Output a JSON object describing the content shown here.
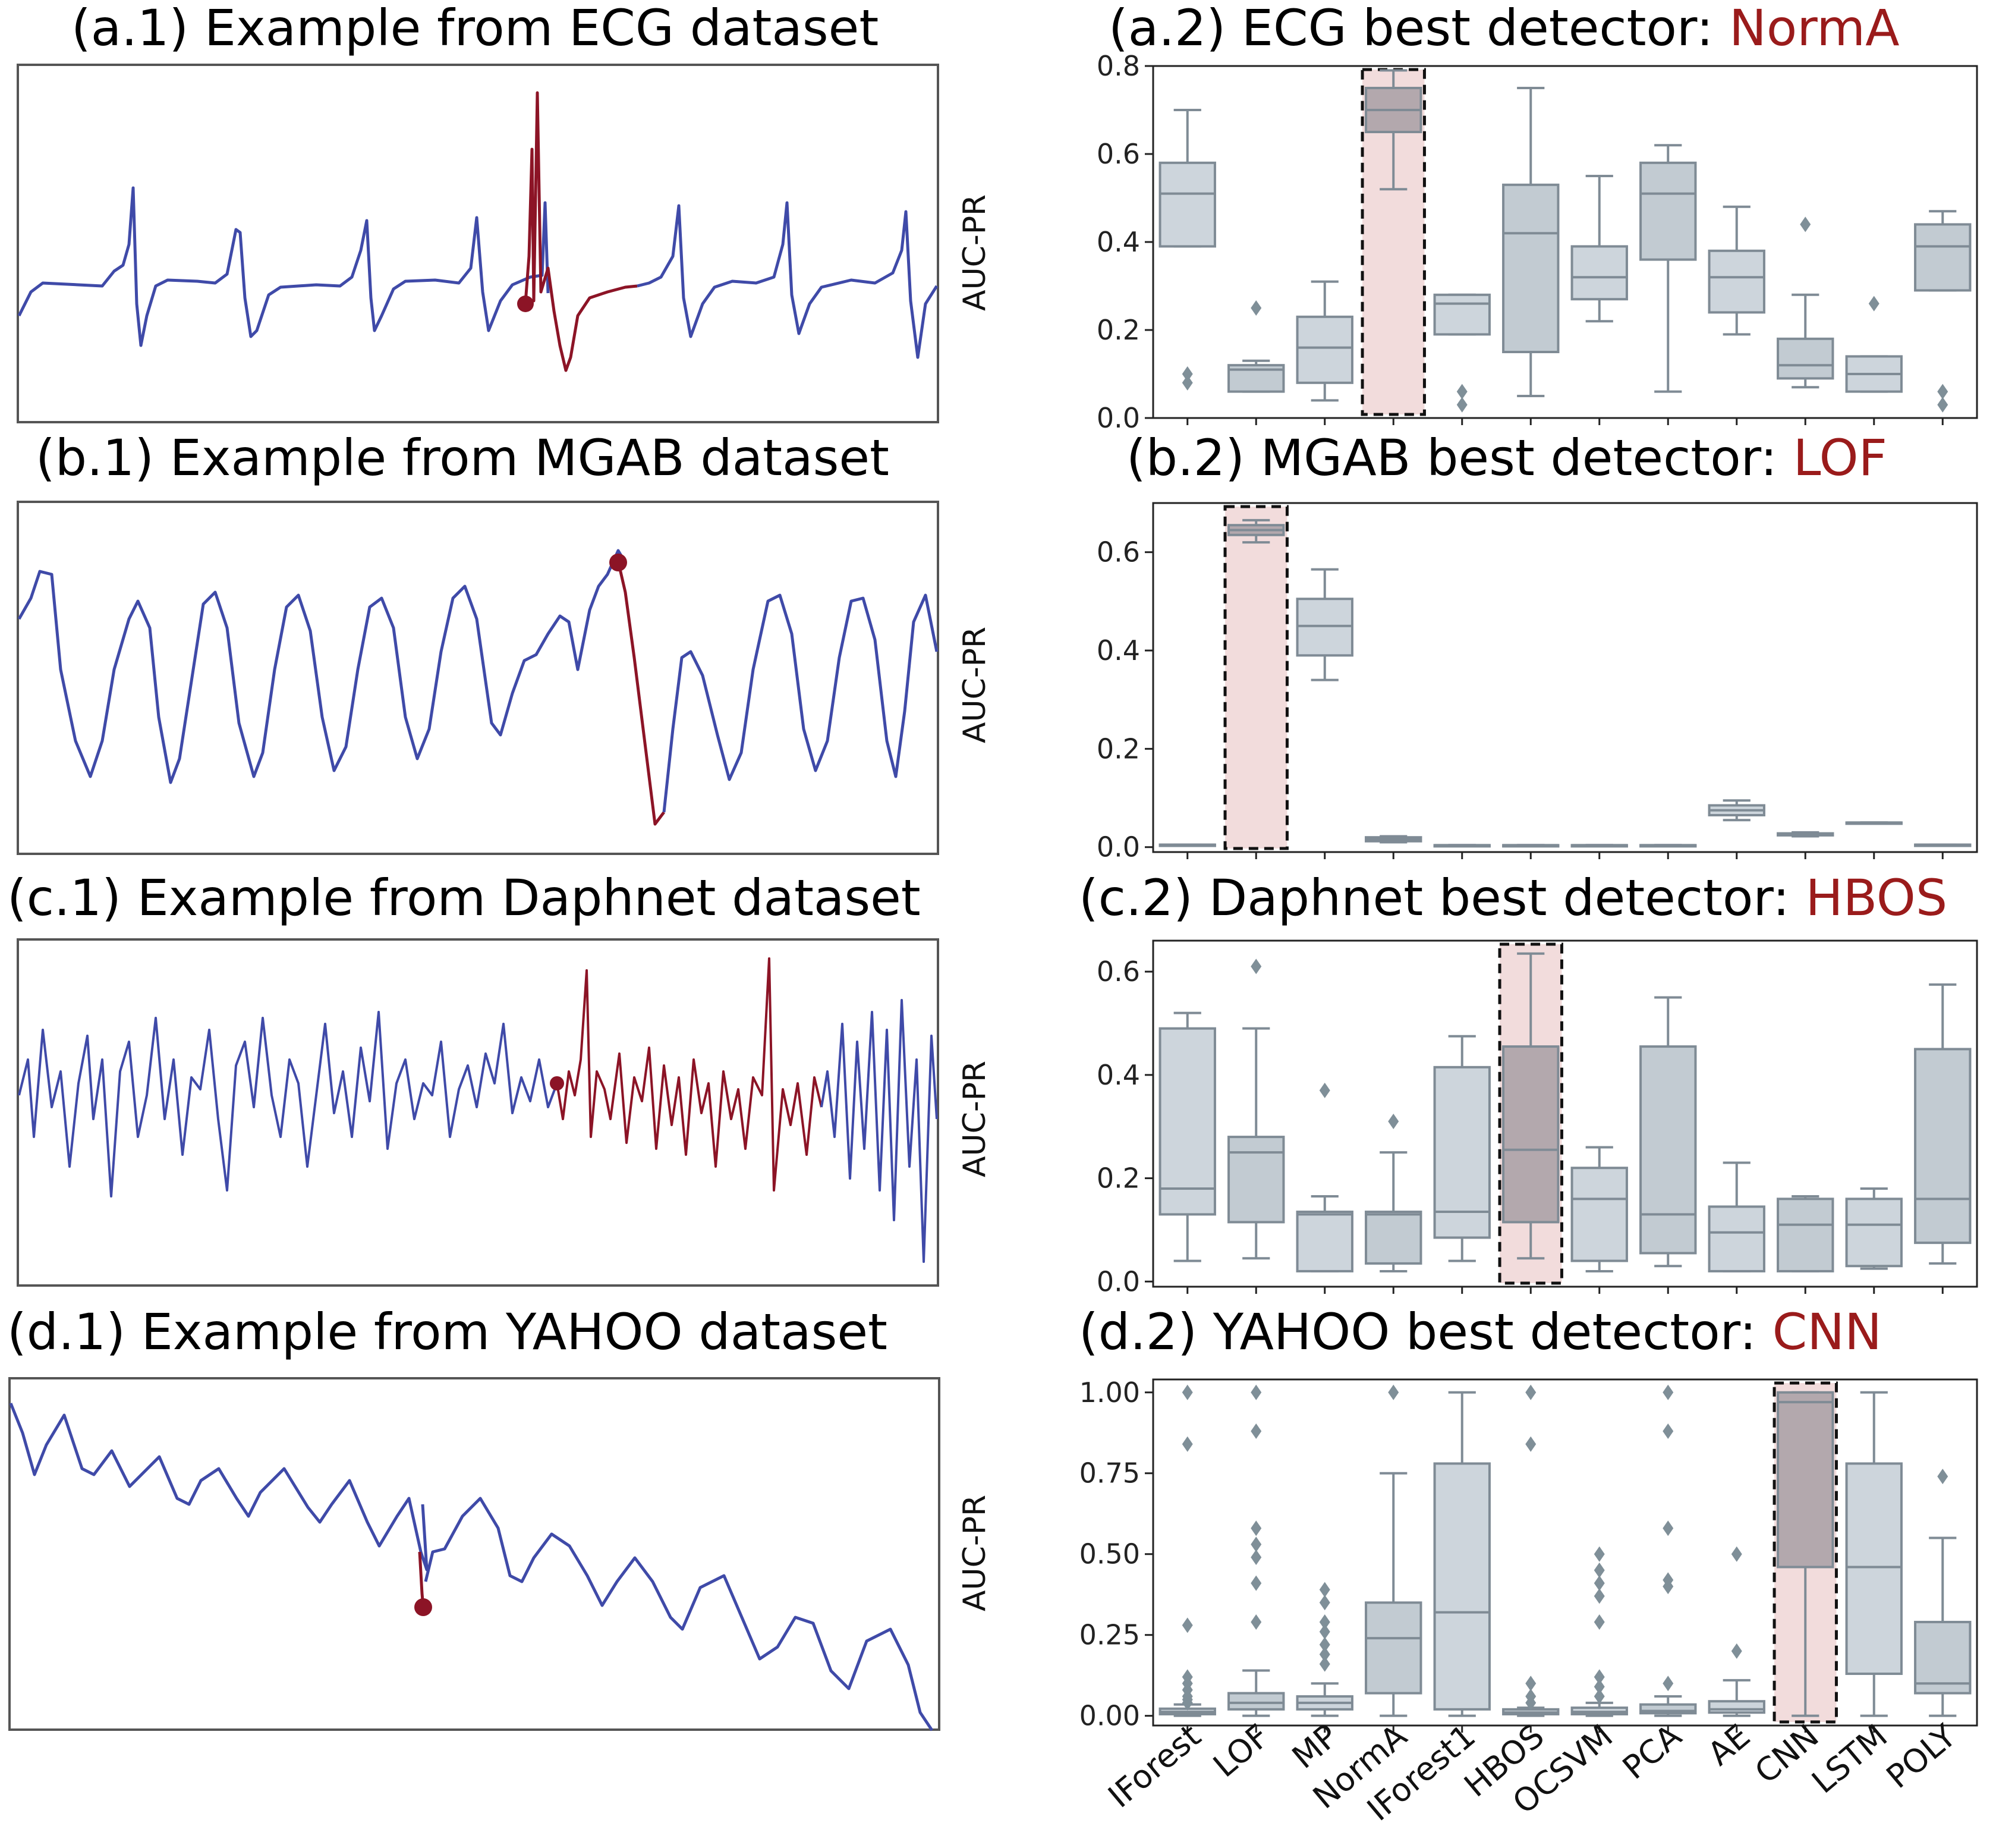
{
  "figure": {
    "left_titles": [
      "(a.1) Example from ECG dataset",
      "(b.1) Example from MGAB dataset",
      "(c.1) Example from Daphnet dataset",
      "(d.1) Example from YAHOO dataset"
    ],
    "right_titles": [
      {
        "prefix": "(a.2) ECG best detector: ",
        "best": "NormA"
      },
      {
        "prefix": "(b.2) MGAB best detector: ",
        "best": "LOF"
      },
      {
        "prefix": "(c.2) Daphnet best detector: ",
        "best": "HBOS"
      },
      {
        "prefix": "(d.2) YAHOO best detector: ",
        "best": "CNN"
      }
    ]
  },
  "colors": {
    "normal_series": "#3f4aa8",
    "anomaly_series": "#8c1426",
    "box_fill": "#cdd5dc",
    "box_fill_dark": "#c2cbd2",
    "box_edge": "#7f8b95",
    "highlight_fill": "#f2dcdc",
    "highlight_box": "#b3a8ad",
    "title_highlight": "#9a1b1b"
  },
  "chart_data": [
    {
      "type": "box",
      "title": "(a.2) ECG best detector: NormA",
      "ylabel": "AUC-PR",
      "ylim": [
        0,
        0.8
      ],
      "yticks": [
        "0.0",
        "0.2",
        "0.4",
        "0.6",
        "0.8"
      ],
      "ytick_values": [
        0,
        0.2,
        0.4,
        0.6,
        0.8
      ],
      "highlight": "NormA",
      "categories": [
        "IForest",
        "LOF",
        "MP",
        "NormA",
        "IForest1",
        "HBOS",
        "OCSVM",
        "PCA",
        "AE",
        "CNN",
        "LSTM",
        "POLY"
      ],
      "boxes": [
        {
          "whislo": 0.39,
          "q1": 0.39,
          "med": 0.51,
          "q3": 0.58,
          "whishi": 0.7,
          "fliers": [
            0.08,
            0.1
          ]
        },
        {
          "whislo": 0.06,
          "q1": 0.06,
          "med": 0.11,
          "q3": 0.12,
          "whishi": 0.13,
          "fliers": [
            0.25
          ]
        },
        {
          "whislo": 0.04,
          "q1": 0.08,
          "med": 0.16,
          "q3": 0.23,
          "whishi": 0.31,
          "fliers": []
        },
        {
          "whislo": 0.52,
          "q1": 0.65,
          "med": 0.7,
          "q3": 0.75,
          "whishi": 0.79,
          "fliers": []
        },
        {
          "whislo": 0.19,
          "q1": 0.19,
          "med": 0.26,
          "q3": 0.28,
          "whishi": 0.28,
          "fliers": [
            0.06,
            0.03
          ]
        },
        {
          "whislo": 0.05,
          "q1": 0.15,
          "med": 0.42,
          "q3": 0.53,
          "whishi": 0.75,
          "fliers": []
        },
        {
          "whislo": 0.22,
          "q1": 0.27,
          "med": 0.32,
          "q3": 0.39,
          "whishi": 0.55,
          "fliers": []
        },
        {
          "whislo": 0.06,
          "q1": 0.36,
          "med": 0.51,
          "q3": 0.58,
          "whishi": 0.62,
          "fliers": []
        },
        {
          "whislo": 0.19,
          "q1": 0.24,
          "med": 0.32,
          "q3": 0.38,
          "whishi": 0.48,
          "fliers": []
        },
        {
          "whislo": 0.07,
          "q1": 0.09,
          "med": 0.12,
          "q3": 0.18,
          "whishi": 0.28,
          "fliers": [
            0.44
          ]
        },
        {
          "whislo": 0.06,
          "q1": 0.06,
          "med": 0.1,
          "q3": 0.14,
          "whishi": 0.14,
          "fliers": [
            0.26
          ]
        },
        {
          "whislo": 0.29,
          "q1": 0.29,
          "med": 0.39,
          "q3": 0.44,
          "whishi": 0.47,
          "fliers": [
            0.06,
            0.03
          ]
        }
      ]
    },
    {
      "type": "box",
      "title": "(b.2) MGAB best detector: LOF",
      "ylabel": "AUC-PR",
      "ylim": [
        -0.01,
        0.7
      ],
      "yticks": [
        "0.0",
        "0.2",
        "0.4",
        "0.6"
      ],
      "ytick_values": [
        0,
        0.2,
        0.4,
        0.6
      ],
      "highlight": "LOF",
      "categories": [
        "IForest",
        "LOF",
        "MP",
        "NormA",
        "IForest1",
        "HBOS",
        "OCSVM",
        "PCA",
        "AE",
        "CNN",
        "LSTM",
        "POLY"
      ],
      "boxes": [
        {
          "whislo": 0.005,
          "q1": 0.005,
          "med": 0.005,
          "q3": 0.005,
          "whishi": 0.005,
          "fliers": []
        },
        {
          "whislo": 0.62,
          "q1": 0.635,
          "med": 0.645,
          "q3": 0.655,
          "whishi": 0.665,
          "fliers": []
        },
        {
          "whislo": 0.34,
          "q1": 0.39,
          "med": 0.45,
          "q3": 0.505,
          "whishi": 0.565,
          "fliers": []
        },
        {
          "whislo": 0.01,
          "q1": 0.012,
          "med": 0.016,
          "q3": 0.02,
          "whishi": 0.022,
          "fliers": []
        },
        {
          "whislo": 0.004,
          "q1": 0.004,
          "med": 0.004,
          "q3": 0.004,
          "whishi": 0.004,
          "fliers": []
        },
        {
          "whislo": 0.004,
          "q1": 0.004,
          "med": 0.004,
          "q3": 0.004,
          "whishi": 0.004,
          "fliers": []
        },
        {
          "whislo": 0.004,
          "q1": 0.004,
          "med": 0.004,
          "q3": 0.004,
          "whishi": 0.004,
          "fliers": []
        },
        {
          "whislo": 0.004,
          "q1": 0.004,
          "med": 0.004,
          "q3": 0.004,
          "whishi": 0.004,
          "fliers": []
        },
        {
          "whislo": 0.055,
          "q1": 0.065,
          "med": 0.075,
          "q3": 0.085,
          "whishi": 0.095,
          "fliers": []
        },
        {
          "whislo": 0.022,
          "q1": 0.024,
          "med": 0.026,
          "q3": 0.028,
          "whishi": 0.03,
          "fliers": []
        },
        {
          "whislo": 0.05,
          "q1": 0.05,
          "med": 0.05,
          "q3": 0.05,
          "whishi": 0.05,
          "fliers": []
        },
        {
          "whislo": 0.005,
          "q1": 0.005,
          "med": 0.005,
          "q3": 0.005,
          "whishi": 0.005,
          "fliers": []
        }
      ]
    },
    {
      "type": "box",
      "title": "(c.2) Daphnet best detector: HBOS",
      "ylabel": "AUC-PR",
      "ylim": [
        -0.01,
        0.66
      ],
      "yticks": [
        "0.0",
        "0.2",
        "0.4",
        "0.6"
      ],
      "ytick_values": [
        0,
        0.2,
        0.4,
        0.6
      ],
      "highlight": "HBOS",
      "categories": [
        "IForest",
        "LOF",
        "MP",
        "NormA",
        "IForest1",
        "HBOS",
        "OCSVM",
        "PCA",
        "AE",
        "CNN",
        "LSTM",
        "POLY"
      ],
      "boxes": [
        {
          "whislo": 0.04,
          "q1": 0.13,
          "med": 0.18,
          "q3": 0.49,
          "whishi": 0.52,
          "fliers": []
        },
        {
          "whislo": 0.045,
          "q1": 0.115,
          "med": 0.25,
          "q3": 0.28,
          "whishi": 0.49,
          "fliers": [
            0.61
          ]
        },
        {
          "whislo": 0.02,
          "q1": 0.02,
          "med": 0.13,
          "q3": 0.135,
          "whishi": 0.165,
          "fliers": [
            0.37
          ]
        },
        {
          "whislo": 0.02,
          "q1": 0.035,
          "med": 0.13,
          "q3": 0.135,
          "whishi": 0.25,
          "fliers": [
            0.31
          ]
        },
        {
          "whislo": 0.04,
          "q1": 0.085,
          "med": 0.135,
          "q3": 0.415,
          "whishi": 0.475,
          "fliers": []
        },
        {
          "whislo": 0.045,
          "q1": 0.115,
          "med": 0.255,
          "q3": 0.455,
          "whishi": 0.635,
          "fliers": []
        },
        {
          "whislo": 0.02,
          "q1": 0.04,
          "med": 0.16,
          "q3": 0.22,
          "whishi": 0.26,
          "fliers": []
        },
        {
          "whislo": 0.03,
          "q1": 0.055,
          "med": 0.13,
          "q3": 0.455,
          "whishi": 0.55,
          "fliers": []
        },
        {
          "whislo": 0.02,
          "q1": 0.02,
          "med": 0.095,
          "q3": 0.145,
          "whishi": 0.23,
          "fliers": []
        },
        {
          "whislo": 0.02,
          "q1": 0.02,
          "med": 0.11,
          "q3": 0.16,
          "whishi": 0.165,
          "fliers": []
        },
        {
          "whislo": 0.025,
          "q1": 0.03,
          "med": 0.11,
          "q3": 0.16,
          "whishi": 0.18,
          "fliers": []
        },
        {
          "whislo": 0.035,
          "q1": 0.075,
          "med": 0.16,
          "q3": 0.45,
          "whishi": 0.575,
          "fliers": []
        }
      ]
    },
    {
      "type": "box",
      "title": "(d.2) YAHOO best detector: CNN",
      "ylabel": "AUC-PR",
      "ylim": [
        -0.03,
        1.04
      ],
      "yticks": [
        "0.00",
        "0.25",
        "0.50",
        "0.75",
        "1.00"
      ],
      "ytick_values": [
        0,
        0.25,
        0.5,
        0.75,
        1.0
      ],
      "highlight": "CNN",
      "categories": [
        "IForest",
        "LOF",
        "MP",
        "NormA",
        "IForest1",
        "HBOS",
        "OCSVM",
        "PCA",
        "AE",
        "CNN",
        "LSTM",
        "POLY"
      ],
      "boxes": [
        {
          "whislo": 0.0,
          "q1": 0.005,
          "med": 0.012,
          "q3": 0.022,
          "whishi": 0.035,
          "fliers": [
            0.04,
            0.05,
            0.06,
            0.08,
            0.1,
            0.12,
            0.28,
            0.84,
            1.0
          ]
        },
        {
          "whislo": 0.0,
          "q1": 0.02,
          "med": 0.04,
          "q3": 0.07,
          "whishi": 0.14,
          "fliers": [
            0.29,
            0.41,
            0.49,
            0.53,
            0.58,
            0.88,
            1.0
          ]
        },
        {
          "whislo": 0.0,
          "q1": 0.02,
          "med": 0.04,
          "q3": 0.06,
          "whishi": 0.1,
          "fliers": [
            0.16,
            0.19,
            0.22,
            0.26,
            0.29,
            0.35,
            0.39
          ]
        },
        {
          "whislo": 0.0,
          "q1": 0.07,
          "med": 0.24,
          "q3": 0.35,
          "whishi": 0.75,
          "fliers": [
            1.0
          ]
        },
        {
          "whislo": 0.0,
          "q1": 0.02,
          "med": 0.32,
          "q3": 0.78,
          "whishi": 1.0,
          "fliers": []
        },
        {
          "whislo": 0.0,
          "q1": 0.005,
          "med": 0.01,
          "q3": 0.02,
          "whishi": 0.025,
          "fliers": [
            0.04,
            0.06,
            0.1,
            0.84,
            1.0
          ]
        },
        {
          "whislo": 0.0,
          "q1": 0.005,
          "med": 0.012,
          "q3": 0.025,
          "whishi": 0.04,
          "fliers": [
            0.06,
            0.09,
            0.12,
            0.29,
            0.37,
            0.41,
            0.45,
            0.5
          ]
        },
        {
          "whislo": 0.0,
          "q1": 0.008,
          "med": 0.015,
          "q3": 0.035,
          "whishi": 0.06,
          "fliers": [
            0.1,
            0.4,
            0.42,
            0.58,
            0.88,
            1.0
          ]
        },
        {
          "whislo": 0.0,
          "q1": 0.01,
          "med": 0.02,
          "q3": 0.045,
          "whishi": 0.11,
          "fliers": [
            0.2,
            0.5
          ]
        },
        {
          "whislo": 0.0,
          "q1": 0.46,
          "med": 0.97,
          "q3": 1.0,
          "whishi": 1.0,
          "fliers": []
        },
        {
          "whislo": 0.0,
          "q1": 0.13,
          "med": 0.46,
          "q3": 0.78,
          "whishi": 1.0,
          "fliers": []
        },
        {
          "whislo": 0.0,
          "q1": 0.07,
          "med": 0.1,
          "q3": 0.29,
          "whishi": 0.55,
          "fliers": [
            0.74
          ]
        }
      ]
    }
  ]
}
